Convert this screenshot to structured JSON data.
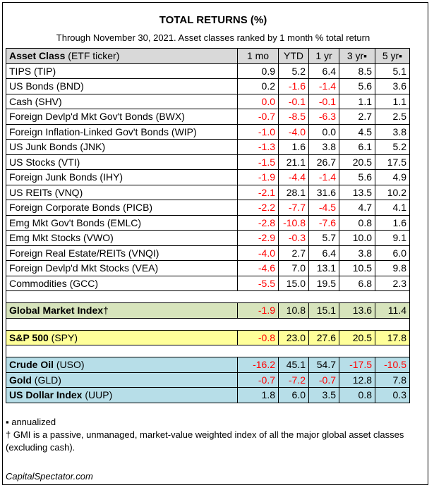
{
  "title": "TOTAL RETURNS (%)",
  "subtitle": "Through November 30, 2021. Asset classes ranked by 1 month % total return",
  "columns": {
    "asset_class_bold": "Asset Class",
    "asset_class_rest": " (ETF ticker)",
    "mo1": "1 mo",
    "ytd": "YTD",
    "yr1": "1 yr",
    "yr3": "3 yr▪",
    "yr5": "5 yr▪"
  },
  "rows": [
    {
      "name": "TIPS (TIP)",
      "mo1": "0.9",
      "ytd": "5.2",
      "yr1": "6.4",
      "yr3": "8.5",
      "yr5": "5.1"
    },
    {
      "name": "US Bonds (BND)",
      "mo1": "0.2",
      "ytd": "-1.6",
      "yr1": "-1.4",
      "yr3": "5.6",
      "yr5": "3.6"
    },
    {
      "name": "Cash (SHV)",
      "mo1": "0.0",
      "ytd": "-0.1",
      "yr1": "-0.1",
      "yr3": "1.1",
      "yr5": "1.1"
    },
    {
      "name": "Foreign Devlp'd Mkt Gov't Bonds (BWX)",
      "mo1": "-0.7",
      "ytd": "-8.5",
      "yr1": "-6.3",
      "yr3": "2.7",
      "yr5": "2.5"
    },
    {
      "name": "Foreign Inflation-Linked Gov't Bonds (WIP)",
      "mo1": "-1.0",
      "ytd": "-4.0",
      "yr1": "0.0",
      "yr3": "4.5",
      "yr5": "3.8"
    },
    {
      "name": "US Junk Bonds (JNK)",
      "mo1": "-1.3",
      "ytd": "1.6",
      "yr1": "3.8",
      "yr3": "6.1",
      "yr5": "5.2"
    },
    {
      "name": "US Stocks (VTI)",
      "mo1": "-1.5",
      "ytd": "21.1",
      "yr1": "26.7",
      "yr3": "20.5",
      "yr5": "17.5"
    },
    {
      "name": "Foreign Junk Bonds (IHY)",
      "mo1": "-1.9",
      "ytd": "-4.4",
      "yr1": "-1.4",
      "yr3": "5.6",
      "yr5": "4.9"
    },
    {
      "name": "US REITs (VNQ)",
      "mo1": "-2.1",
      "ytd": "28.1",
      "yr1": "31.6",
      "yr3": "13.5",
      "yr5": "10.2"
    },
    {
      "name": "Foreign Corporate Bonds (PICB)",
      "mo1": "-2.2",
      "ytd": "-7.7",
      "yr1": "-4.5",
      "yr3": "4.7",
      "yr5": "4.1"
    },
    {
      "name": "Emg Mkt Gov't Bonds (EMLC)",
      "mo1": "-2.8",
      "ytd": "-10.8",
      "yr1": "-7.6",
      "yr3": "0.8",
      "yr5": "1.6"
    },
    {
      "name": "Emg Mkt Stocks (VWO)",
      "mo1": "-2.9",
      "ytd": "-0.3",
      "yr1": "5.7",
      "yr3": "10.0",
      "yr5": "9.1"
    },
    {
      "name": "Foreign Real Estate/REITs (VNQI)",
      "mo1": "-4.0",
      "ytd": "2.7",
      "yr1": "6.4",
      "yr3": "3.8",
      "yr5": "6.0"
    },
    {
      "name": "Foreign Devlp'd Mkt Stocks (VEA)",
      "mo1": "-4.6",
      "ytd": "7.0",
      "yr1": "13.1",
      "yr3": "10.5",
      "yr5": "9.8"
    },
    {
      "name": "Commodities (GCC)",
      "mo1": "-5.5",
      "ytd": "15.0",
      "yr1": "19.5",
      "yr3": "6.8",
      "yr5": "2.3"
    }
  ],
  "gmi": {
    "name_bold": "Global Market Index",
    "name_rest": "†",
    "mo1": "-1.9",
    "ytd": "10.8",
    "yr1": "15.1",
    "yr3": "13.6",
    "yr5": "11.4"
  },
  "spy": {
    "name_bold": "S&P 500",
    "name_rest": " (SPY)",
    "mo1": "-0.8",
    "ytd": "23.0",
    "yr1": "27.6",
    "yr3": "20.5",
    "yr5": "17.8"
  },
  "commodities": [
    {
      "name_bold": "Crude Oil",
      "name_rest": " (USO)",
      "mo1": "-16.2",
      "ytd": "45.1",
      "yr1": "54.7",
      "yr3": "-17.5",
      "yr5": "-10.5"
    },
    {
      "name_bold": "Gold",
      "name_rest": " (GLD)",
      "mo1": "-0.7",
      "ytd": "-7.2",
      "yr1": "-0.7",
      "yr3": "12.8",
      "yr5": "7.8"
    },
    {
      "name_bold": "US Dollar Index",
      "name_rest": " (UUP)",
      "mo1": "1.8",
      "ytd": "6.0",
      "yr1": "3.5",
      "yr3": "0.8",
      "yr5": "0.3"
    }
  ],
  "notes": {
    "annualized": "▪ annualized",
    "gmi": "† GMI is a passive, unmanaged, market-value weighted index of all the major global asset classes (excluding cash)."
  },
  "source": "CapitalSpectator.com",
  "colors": {
    "negative": "#ff0000",
    "header_bg": "#d9d9d9",
    "gmi_bg": "#d7e4bc",
    "spy_bg": "#ffff99",
    "commodity_bg": "#b7dee8"
  }
}
